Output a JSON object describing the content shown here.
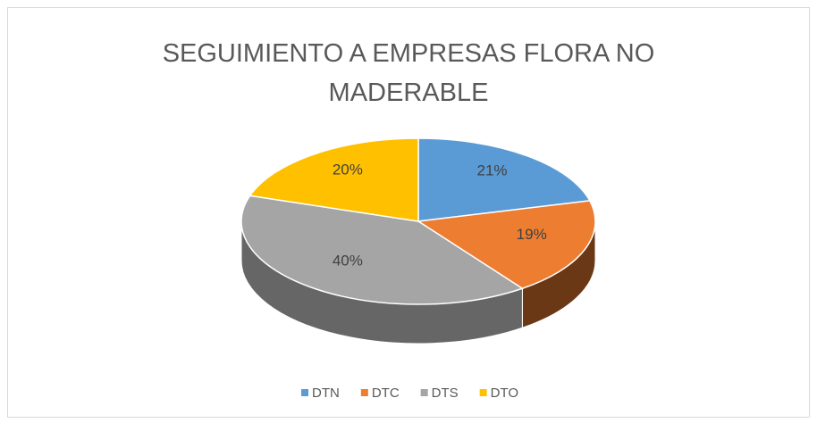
{
  "chart_data": {
    "type": "pie",
    "title": "SEGUIMIENTO A EMPRESAS FLORA NO MADERABLE",
    "categories": [
      "DTN",
      "DTC",
      "DTS",
      "DTO"
    ],
    "values": [
      21,
      19,
      40,
      20
    ],
    "value_labels": [
      "21%",
      "19%",
      "40%",
      "20%"
    ],
    "colors": [
      "#5b9bd5",
      "#ed7d31",
      "#a5a5a5",
      "#ffc000"
    ],
    "legend": "bottom"
  }
}
